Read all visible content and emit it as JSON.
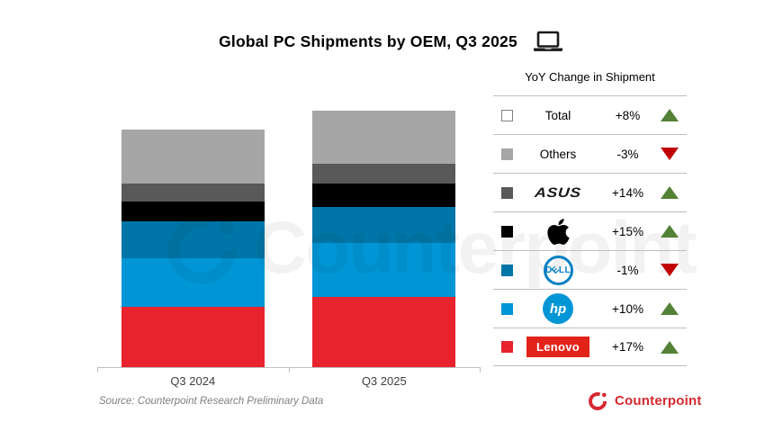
{
  "title": {
    "text": "Global PC Shipments by OEM, Q3 2025"
  },
  "watermark": "Counterpoint",
  "source": "Source: Counterpoint Research Preliminary Data",
  "brand": {
    "name": "Counterpoint",
    "color": "#D7282F"
  },
  "legend": {
    "header": "YoY Change in Shipment",
    "up_color": "#538135",
    "down_color": "#C00000",
    "rows": [
      {
        "name": "Total",
        "change": "+8%",
        "direction": "up",
        "swatch": "#FFFFFF",
        "swatch_border": "#808080",
        "logo": "text"
      },
      {
        "name": "Others",
        "change": "-3%",
        "direction": "down",
        "swatch": "#A6A6A6",
        "logo": "text"
      },
      {
        "name": "ASUS",
        "change": "+14%",
        "direction": "up",
        "swatch": "#595959",
        "logo": "asus",
        "logo_text": "ASUS"
      },
      {
        "name": "Apple",
        "change": "+15%",
        "direction": "up",
        "swatch": "#000000",
        "logo": "apple"
      },
      {
        "name": "Dell",
        "change": "-1%",
        "direction": "down",
        "swatch": "#0076A8",
        "logo": "dell",
        "logo_text": "DELL"
      },
      {
        "name": "HP",
        "change": "+10%",
        "direction": "up",
        "swatch": "#0096D6",
        "logo": "hp",
        "logo_text": "hp"
      },
      {
        "name": "Lenovo",
        "change": "+17%",
        "direction": "up",
        "swatch": "#E8232D",
        "logo": "lenovo",
        "logo_text": "Lenovo"
      }
    ]
  },
  "chart_data": {
    "type": "bar",
    "stacked": true,
    "title": "Global PC Shipments by OEM, Q3 2025",
    "categories": [
      "Q3 2024",
      "Q3 2025"
    ],
    "series": [
      {
        "name": "Lenovo",
        "color": "#E8232D",
        "values": [
          25.2,
          29.5
        ]
      },
      {
        "name": "HP",
        "color": "#0096D6",
        "values": [
          20.7,
          22.8
        ]
      },
      {
        "name": "Dell",
        "color": "#0076A8",
        "values": [
          15.4,
          15.2
        ]
      },
      {
        "name": "Apple",
        "color": "#000000",
        "values": [
          8.3,
          9.5
        ]
      },
      {
        "name": "ASUS",
        "color": "#595959",
        "values": [
          7.5,
          8.6
        ]
      },
      {
        "name": "Others",
        "color": "#A6A6A6",
        "values": [
          22.9,
          22.2
        ]
      }
    ],
    "totals": [
      100,
      107.8
    ],
    "units": "relative index (Q3 2024 total = 100); no y-axis values shown in chart",
    "yoy_change": {
      "Total": "+8%",
      "Others": "-3%",
      "ASUS": "+14%",
      "Apple": "+15%",
      "Dell": "-1%",
      "HP": "+10%",
      "Lenovo": "+17%"
    },
    "legend_position": "right",
    "grid": false
  },
  "x_axis": {
    "labels": [
      "Q3 2024",
      "Q3 2025"
    ]
  }
}
